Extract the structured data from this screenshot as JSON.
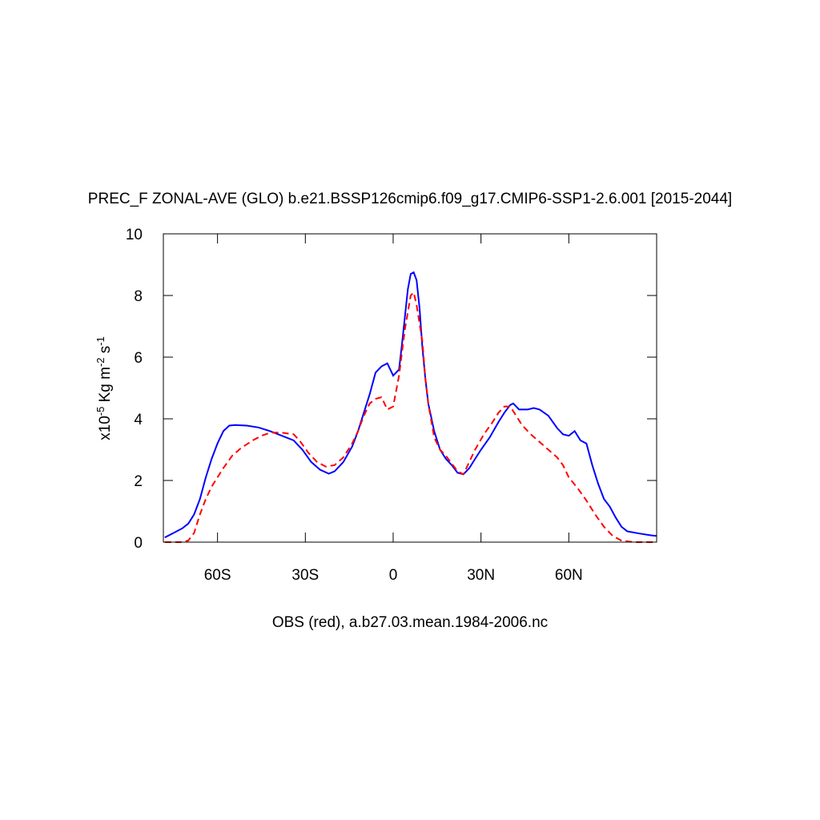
{
  "chart_data": {
    "type": "line",
    "title": "PREC_F ZONAL-AVE (GLO) b.e21.BSSP126cmip6.f09_g17.CMIP6-SSP1-2.6.001 [2015-2044]",
    "xlabel": "OBS (red), a.b27.03.mean.1984-2006.nc",
    "ylabel": [
      "x10",
      "-5",
      " Kg m",
      "-2",
      " s",
      "-1"
    ],
    "xlim": [
      -78.5,
      90
    ],
    "ylim": [
      0,
      10
    ],
    "xticks": [
      {
        "value": -60,
        "label": "60S"
      },
      {
        "value": -30,
        "label": "30S"
      },
      0,
      {
        "value": 30,
        "label": "30N"
      },
      {
        "value": 60,
        "label": "60N"
      }
    ],
    "yticks": [
      0,
      2,
      4,
      6,
      8,
      10
    ],
    "series": [
      {
        "color": "#0000ff",
        "dashed": false,
        "x": [
          -78,
          -75,
          -72,
          -70,
          -68,
          -66,
          -64,
          -62,
          -60,
          -58,
          -56,
          -54,
          -50,
          -46,
          -42,
          -38,
          -34,
          -31,
          -28,
          -25,
          -22,
          -20,
          -17,
          -14,
          -12,
          -10,
          -8,
          -6,
          -4,
          -2,
          0,
          2,
          3,
          4,
          5,
          6,
          7,
          8,
          9,
          10,
          11,
          12,
          14,
          16,
          18,
          20,
          22,
          24,
          26,
          28,
          30,
          33,
          36,
          38,
          40,
          41,
          43,
          46,
          48,
          50,
          53,
          56,
          58,
          60,
          62,
          64,
          66,
          68,
          70,
          72,
          74,
          76,
          78,
          80,
          84,
          88,
          90
        ],
        "values": [
          0.15,
          0.3,
          0.45,
          0.6,
          0.9,
          1.4,
          2.1,
          2.7,
          3.2,
          3.6,
          3.78,
          3.8,
          3.78,
          3.72,
          3.6,
          3.45,
          3.3,
          3.0,
          2.6,
          2.35,
          2.22,
          2.3,
          2.6,
          3.1,
          3.6,
          4.2,
          4.8,
          5.5,
          5.7,
          5.8,
          5.4,
          5.6,
          6.4,
          7.3,
          8.2,
          8.7,
          8.75,
          8.5,
          7.6,
          6.3,
          5.3,
          4.5,
          3.6,
          3.0,
          2.7,
          2.5,
          2.25,
          2.2,
          2.4,
          2.7,
          3.0,
          3.4,
          3.9,
          4.2,
          4.45,
          4.5,
          4.3,
          4.3,
          4.35,
          4.3,
          4.1,
          3.7,
          3.5,
          3.45,
          3.6,
          3.3,
          3.2,
          2.5,
          1.9,
          1.4,
          1.15,
          0.8,
          0.5,
          0.35,
          0.28,
          0.22,
          0.2
        ]
      },
      {
        "color": "#ff0000",
        "dashed": true,
        "x": [
          -78,
          -72,
          -70,
          -68,
          -66,
          -64,
          -62,
          -60,
          -58,
          -55,
          -52,
          -48,
          -45,
          -42,
          -38,
          -34,
          -32,
          -29,
          -26,
          -23,
          -20,
          -17,
          -14,
          -12,
          -10,
          -8,
          -6,
          -4,
          -2,
          0,
          2,
          4,
          6,
          7,
          8,
          10,
          11,
          12,
          14,
          16,
          18,
          20,
          22,
          24,
          26,
          28,
          31,
          34,
          36,
          38,
          40,
          42,
          44,
          47,
          50,
          53,
          56,
          58,
          60,
          63,
          66,
          69,
          72,
          75,
          78,
          82,
          90
        ],
        "values": [
          0,
          0,
          0.05,
          0.3,
          0.9,
          1.4,
          1.8,
          2.1,
          2.4,
          2.8,
          3.05,
          3.3,
          3.45,
          3.55,
          3.55,
          3.5,
          3.3,
          2.9,
          2.6,
          2.45,
          2.5,
          2.75,
          3.2,
          3.6,
          4.1,
          4.5,
          4.65,
          4.7,
          4.3,
          4.4,
          5.4,
          6.9,
          8.0,
          8.1,
          7.7,
          6.5,
          5.3,
          4.5,
          3.4,
          3.0,
          2.8,
          2.55,
          2.3,
          2.2,
          2.6,
          3.0,
          3.5,
          3.9,
          4.2,
          4.4,
          4.4,
          4.1,
          3.8,
          3.5,
          3.25,
          3.0,
          2.75,
          2.5,
          2.1,
          1.75,
          1.35,
          0.9,
          0.5,
          0.2,
          0.05,
          0,
          0
        ]
      }
    ]
  }
}
